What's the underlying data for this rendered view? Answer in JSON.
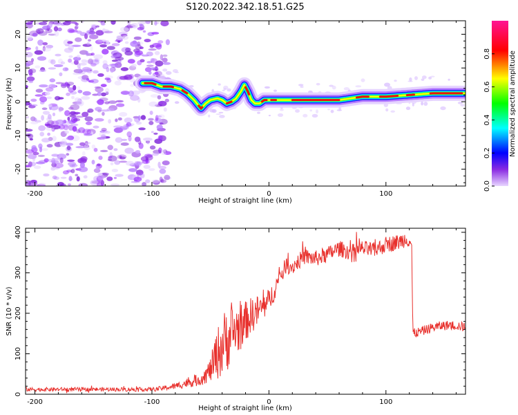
{
  "figure": {
    "title": "S120.2022.342.18.51.G25"
  },
  "chart_data": [
    {
      "type": "heatmap",
      "xlabel": "Height of straight line (km)",
      "ylabel": "Frequency (Hz)",
      "xlim": [
        -208,
        168
      ],
      "ylim": [
        -25,
        24
      ],
      "x_ticks": [
        -200,
        -100,
        0,
        100
      ],
      "y_ticks": [
        -20,
        -10,
        0,
        10,
        20
      ],
      "colorbar": {
        "label": "Normalized spectral amplitude",
        "range": [
          0.0,
          1.0
        ],
        "ticks": [
          0.0,
          0.2,
          0.4,
          0.6,
          0.8
        ],
        "tick_labels": [
          "0.0",
          "0.2",
          "0.4",
          "0.6",
          "0.8"
        ]
      },
      "noise_region_x": [
        -208,
        -92
      ],
      "ridge": {
        "x": [
          -108,
          -100,
          -92,
          -84,
          -76,
          -70,
          -64,
          -58,
          -54,
          -50,
          -44,
          -40,
          -36,
          -32,
          -28,
          -24,
          -21,
          -18,
          -15,
          -12,
          -8,
          -4,
          0,
          10,
          20,
          40,
          60,
          70,
          80,
          100,
          120,
          140,
          168
        ],
        "y": [
          5.5,
          5.5,
          4.5,
          4.5,
          3.8,
          2.5,
          0.5,
          -2,
          -0.5,
          0.5,
          1,
          0.5,
          -0.5,
          0,
          1,
          3,
          5,
          3,
          0.5,
          -0.5,
          -0.5,
          0.5,
          0.5,
          0.5,
          0.5,
          0.5,
          0.5,
          1,
          1.5,
          1.5,
          2,
          2.5,
          2.5
        ]
      }
    },
    {
      "type": "line",
      "xlabel": "Height of straight line (km)",
      "ylabel": "SNR (10 * v/v)",
      "xlim": [
        -208,
        168
      ],
      "ylim": [
        0,
        410
      ],
      "x_ticks": [
        -200,
        -100,
        0,
        100
      ],
      "y_ticks": [
        0,
        100,
        200,
        300,
        400
      ],
      "series": [
        {
          "color": "#e8302c",
          "x": [
            -208,
            -150,
            -100,
            -90,
            -80,
            -70,
            -60,
            -55,
            -50,
            -45,
            -40,
            -35,
            -30,
            -25,
            -20,
            -15,
            -10,
            -5,
            0,
            5,
            10,
            15,
            20,
            30,
            40,
            50,
            60,
            70,
            80,
            90,
            100,
            110,
            118,
            120,
            122,
            123,
            130,
            140,
            150,
            160,
            168
          ],
          "mean": [
            12,
            12,
            12,
            15,
            20,
            28,
            35,
            45,
            60,
            95,
            120,
            140,
            155,
            165,
            180,
            195,
            205,
            215,
            230,
            260,
            295,
            320,
            315,
            340,
            335,
            345,
            360,
            350,
            360,
            355,
            370,
            375,
            385,
            380,
            370,
            150,
            155,
            165,
            170,
            170,
            165
          ],
          "amp": [
            5,
            5,
            5,
            6,
            8,
            12,
            15,
            20,
            30,
            60,
            80,
            80,
            70,
            60,
            50,
            45,
            40,
            35,
            30,
            25,
            20,
            20,
            20,
            20,
            20,
            20,
            20,
            20,
            20,
            20,
            20,
            20,
            20,
            20,
            20,
            12,
            12,
            12,
            12,
            12,
            12
          ]
        }
      ]
    }
  ]
}
